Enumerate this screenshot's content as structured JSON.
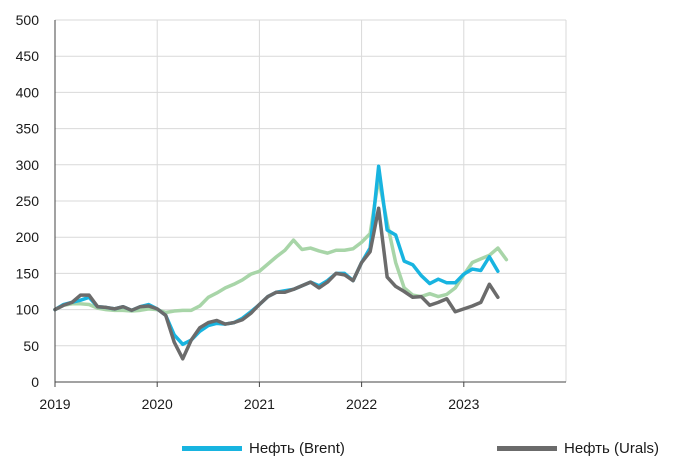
{
  "chart_data": {
    "type": "line",
    "title": "",
    "xlabel": "",
    "ylabel": "",
    "ylim": [
      0,
      500
    ],
    "y_ticks": [
      "0",
      "50",
      "100",
      "150",
      "200",
      "250",
      "300",
      "350",
      "400",
      "450",
      "500"
    ],
    "x_ticks": [
      "2019",
      "2020",
      "2021",
      "2022",
      "2023"
    ],
    "x_range": [
      "2019-01",
      "2024-01"
    ],
    "grid": true,
    "legend_placement": "bottom",
    "x": [
      "2019-01",
      "2019-02",
      "2019-03",
      "2019-04",
      "2019-05",
      "2019-06",
      "2019-07",
      "2019-08",
      "2019-09",
      "2019-10",
      "2019-11",
      "2019-12",
      "2020-01",
      "2020-02",
      "2020-03",
      "2020-04",
      "2020-05",
      "2020-06",
      "2020-07",
      "2020-08",
      "2020-09",
      "2020-10",
      "2020-11",
      "2020-12",
      "2021-01",
      "2021-02",
      "2021-03",
      "2021-04",
      "2021-05",
      "2021-06",
      "2021-07",
      "2021-08",
      "2021-09",
      "2021-10",
      "2021-11",
      "2021-12",
      "2022-01",
      "2022-02",
      "2022-03",
      "2022-04",
      "2022-05",
      "2022-06",
      "2022-07",
      "2022-08",
      "2022-09",
      "2022-10",
      "2022-11",
      "2022-12",
      "2023-01",
      "2023-02",
      "2023-03",
      "2023-04",
      "2023-05",
      "2023-06"
    ],
    "series": [
      {
        "name": "Нефть (Brent)",
        "color": "#18b4e0",
        "values": [
          100,
          107,
          110,
          113,
          117,
          104,
          103,
          101,
          104,
          99,
          104,
          107,
          101,
          92,
          65,
          52,
          58,
          70,
          78,
          81,
          80,
          82,
          88,
          97,
          107,
          118,
          124,
          126,
          128,
          133,
          138,
          133,
          140,
          150,
          150,
          140,
          165,
          185,
          298,
          210,
          203,
          167,
          162,
          147,
          136,
          142,
          137,
          137,
          149,
          156,
          154,
          173,
          153,
          null
        ]
      },
      {
        "name": "",
        "color": "#a8d5a8",
        "values": [
          100,
          106,
          108,
          108,
          107,
          102,
          100,
          99,
          99,
          98,
          99,
          101,
          100,
          96,
          98,
          99,
          99,
          105,
          117,
          123,
          130,
          135,
          141,
          149,
          153,
          163,
          173,
          182,
          196,
          183,
          185,
          181,
          178,
          182,
          182,
          184,
          193,
          205,
          281,
          220,
          165,
          130,
          120,
          118,
          122,
          118,
          121,
          130,
          148,
          165,
          170,
          175,
          185,
          169
        ]
      },
      {
        "name": "Нефть (Urals)",
        "color": "#6b6b6b",
        "values": [
          100,
          106,
          110,
          120,
          120,
          104,
          103,
          101,
          104,
          99,
          104,
          105,
          101,
          92,
          55,
          32,
          58,
          75,
          82,
          85,
          80,
          82,
          86,
          95,
          107,
          118,
          124,
          124,
          128,
          133,
          138,
          130,
          138,
          150,
          148,
          140,
          165,
          180,
          240,
          145,
          132,
          125,
          117,
          118,
          106,
          110,
          115,
          97,
          101,
          105,
          110,
          135,
          117,
          null
        ]
      }
    ]
  },
  "legend": {
    "brent": "Нефть (Brent)",
    "urals": "Нефть (Urals)"
  }
}
